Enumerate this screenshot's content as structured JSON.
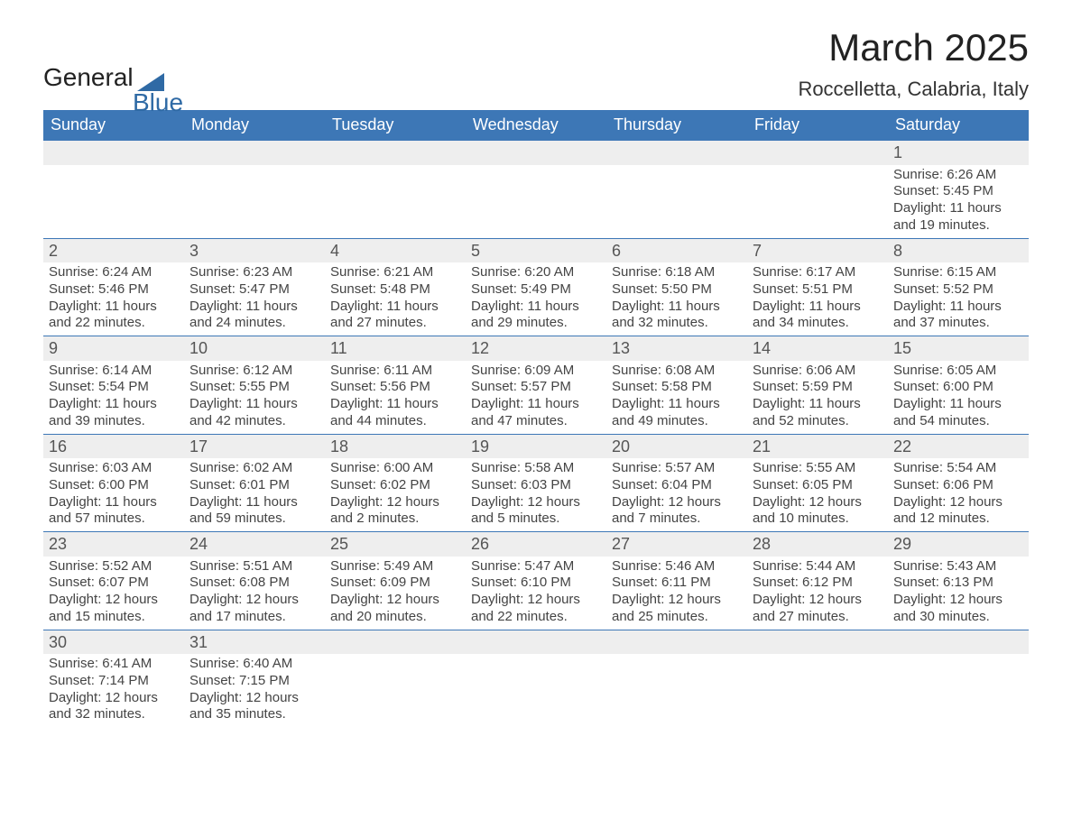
{
  "brand": {
    "part1": "General",
    "part2": "Blue"
  },
  "title": {
    "month": "March 2025",
    "location": "Roccelletta, Calabria, Italy"
  },
  "colors": {
    "header_bg": "#3d77b6",
    "header_text": "#ffffff",
    "daynum_bg": "#eeeeee",
    "row_border": "#3d77b6",
    "text": "#444444",
    "brand_accent": "#2f6aa5"
  },
  "typography": {
    "month_fontsize": 42,
    "location_fontsize": 22,
    "header_fontsize": 18,
    "cell_fontsize": 15
  },
  "calendar": {
    "type": "table",
    "columns": [
      "Sunday",
      "Monday",
      "Tuesday",
      "Wednesday",
      "Thursday",
      "Friday",
      "Saturday"
    ],
    "weeks": [
      [
        null,
        null,
        null,
        null,
        null,
        null,
        {
          "day": "1",
          "sunrise": "Sunrise: 6:26 AM",
          "sunset": "Sunset: 5:45 PM",
          "daylight1": "Daylight: 11 hours",
          "daylight2": "and 19 minutes."
        }
      ],
      [
        {
          "day": "2",
          "sunrise": "Sunrise: 6:24 AM",
          "sunset": "Sunset: 5:46 PM",
          "daylight1": "Daylight: 11 hours",
          "daylight2": "and 22 minutes."
        },
        {
          "day": "3",
          "sunrise": "Sunrise: 6:23 AM",
          "sunset": "Sunset: 5:47 PM",
          "daylight1": "Daylight: 11 hours",
          "daylight2": "and 24 minutes."
        },
        {
          "day": "4",
          "sunrise": "Sunrise: 6:21 AM",
          "sunset": "Sunset: 5:48 PM",
          "daylight1": "Daylight: 11 hours",
          "daylight2": "and 27 minutes."
        },
        {
          "day": "5",
          "sunrise": "Sunrise: 6:20 AM",
          "sunset": "Sunset: 5:49 PM",
          "daylight1": "Daylight: 11 hours",
          "daylight2": "and 29 minutes."
        },
        {
          "day": "6",
          "sunrise": "Sunrise: 6:18 AM",
          "sunset": "Sunset: 5:50 PM",
          "daylight1": "Daylight: 11 hours",
          "daylight2": "and 32 minutes."
        },
        {
          "day": "7",
          "sunrise": "Sunrise: 6:17 AM",
          "sunset": "Sunset: 5:51 PM",
          "daylight1": "Daylight: 11 hours",
          "daylight2": "and 34 minutes."
        },
        {
          "day": "8",
          "sunrise": "Sunrise: 6:15 AM",
          "sunset": "Sunset: 5:52 PM",
          "daylight1": "Daylight: 11 hours",
          "daylight2": "and 37 minutes."
        }
      ],
      [
        {
          "day": "9",
          "sunrise": "Sunrise: 6:14 AM",
          "sunset": "Sunset: 5:54 PM",
          "daylight1": "Daylight: 11 hours",
          "daylight2": "and 39 minutes."
        },
        {
          "day": "10",
          "sunrise": "Sunrise: 6:12 AM",
          "sunset": "Sunset: 5:55 PM",
          "daylight1": "Daylight: 11 hours",
          "daylight2": "and 42 minutes."
        },
        {
          "day": "11",
          "sunrise": "Sunrise: 6:11 AM",
          "sunset": "Sunset: 5:56 PM",
          "daylight1": "Daylight: 11 hours",
          "daylight2": "and 44 minutes."
        },
        {
          "day": "12",
          "sunrise": "Sunrise: 6:09 AM",
          "sunset": "Sunset: 5:57 PM",
          "daylight1": "Daylight: 11 hours",
          "daylight2": "and 47 minutes."
        },
        {
          "day": "13",
          "sunrise": "Sunrise: 6:08 AM",
          "sunset": "Sunset: 5:58 PM",
          "daylight1": "Daylight: 11 hours",
          "daylight2": "and 49 minutes."
        },
        {
          "day": "14",
          "sunrise": "Sunrise: 6:06 AM",
          "sunset": "Sunset: 5:59 PM",
          "daylight1": "Daylight: 11 hours",
          "daylight2": "and 52 minutes."
        },
        {
          "day": "15",
          "sunrise": "Sunrise: 6:05 AM",
          "sunset": "Sunset: 6:00 PM",
          "daylight1": "Daylight: 11 hours",
          "daylight2": "and 54 minutes."
        }
      ],
      [
        {
          "day": "16",
          "sunrise": "Sunrise: 6:03 AM",
          "sunset": "Sunset: 6:00 PM",
          "daylight1": "Daylight: 11 hours",
          "daylight2": "and 57 minutes."
        },
        {
          "day": "17",
          "sunrise": "Sunrise: 6:02 AM",
          "sunset": "Sunset: 6:01 PM",
          "daylight1": "Daylight: 11 hours",
          "daylight2": "and 59 minutes."
        },
        {
          "day": "18",
          "sunrise": "Sunrise: 6:00 AM",
          "sunset": "Sunset: 6:02 PM",
          "daylight1": "Daylight: 12 hours",
          "daylight2": "and 2 minutes."
        },
        {
          "day": "19",
          "sunrise": "Sunrise: 5:58 AM",
          "sunset": "Sunset: 6:03 PM",
          "daylight1": "Daylight: 12 hours",
          "daylight2": "and 5 minutes."
        },
        {
          "day": "20",
          "sunrise": "Sunrise: 5:57 AM",
          "sunset": "Sunset: 6:04 PM",
          "daylight1": "Daylight: 12 hours",
          "daylight2": "and 7 minutes."
        },
        {
          "day": "21",
          "sunrise": "Sunrise: 5:55 AM",
          "sunset": "Sunset: 6:05 PM",
          "daylight1": "Daylight: 12 hours",
          "daylight2": "and 10 minutes."
        },
        {
          "day": "22",
          "sunrise": "Sunrise: 5:54 AM",
          "sunset": "Sunset: 6:06 PM",
          "daylight1": "Daylight: 12 hours",
          "daylight2": "and 12 minutes."
        }
      ],
      [
        {
          "day": "23",
          "sunrise": "Sunrise: 5:52 AM",
          "sunset": "Sunset: 6:07 PM",
          "daylight1": "Daylight: 12 hours",
          "daylight2": "and 15 minutes."
        },
        {
          "day": "24",
          "sunrise": "Sunrise: 5:51 AM",
          "sunset": "Sunset: 6:08 PM",
          "daylight1": "Daylight: 12 hours",
          "daylight2": "and 17 minutes."
        },
        {
          "day": "25",
          "sunrise": "Sunrise: 5:49 AM",
          "sunset": "Sunset: 6:09 PM",
          "daylight1": "Daylight: 12 hours",
          "daylight2": "and 20 minutes."
        },
        {
          "day": "26",
          "sunrise": "Sunrise: 5:47 AM",
          "sunset": "Sunset: 6:10 PM",
          "daylight1": "Daylight: 12 hours",
          "daylight2": "and 22 minutes."
        },
        {
          "day": "27",
          "sunrise": "Sunrise: 5:46 AM",
          "sunset": "Sunset: 6:11 PM",
          "daylight1": "Daylight: 12 hours",
          "daylight2": "and 25 minutes."
        },
        {
          "day": "28",
          "sunrise": "Sunrise: 5:44 AM",
          "sunset": "Sunset: 6:12 PM",
          "daylight1": "Daylight: 12 hours",
          "daylight2": "and 27 minutes."
        },
        {
          "day": "29",
          "sunrise": "Sunrise: 5:43 AM",
          "sunset": "Sunset: 6:13 PM",
          "daylight1": "Daylight: 12 hours",
          "daylight2": "and 30 minutes."
        }
      ],
      [
        {
          "day": "30",
          "sunrise": "Sunrise: 6:41 AM",
          "sunset": "Sunset: 7:14 PM",
          "daylight1": "Daylight: 12 hours",
          "daylight2": "and 32 minutes."
        },
        {
          "day": "31",
          "sunrise": "Sunrise: 6:40 AM",
          "sunset": "Sunset: 7:15 PM",
          "daylight1": "Daylight: 12 hours",
          "daylight2": "and 35 minutes."
        },
        null,
        null,
        null,
        null,
        null
      ]
    ]
  }
}
